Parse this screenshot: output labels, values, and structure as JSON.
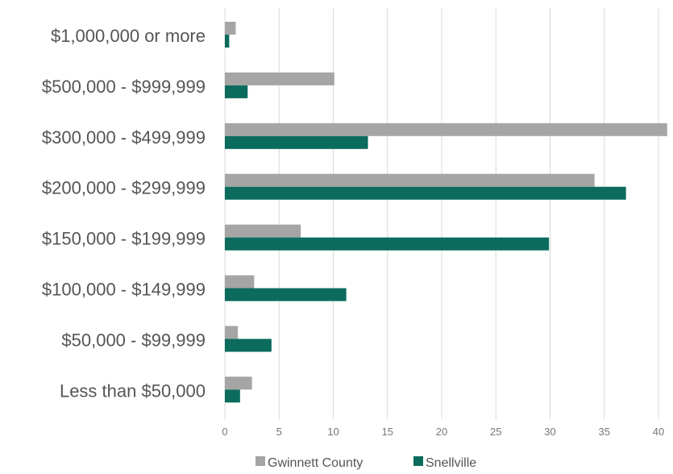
{
  "chart_data": {
    "type": "bar",
    "orientation": "horizontal",
    "title": "",
    "xlabel": "",
    "ylabel": "",
    "categories": [
      "$1,000,000 or more",
      "$500,000 - $999,999",
      "$300,000 - $499,999",
      "$200,000 - $299,999",
      "$150,000 - $199,999",
      "$100,000 - $149,999",
      "$50,000 - $99,999",
      "Less than $50,000"
    ],
    "series": [
      {
        "name": "Gwinnett County",
        "color": "#a5a5a5",
        "values": [
          1.0,
          10.1,
          40.8,
          34.1,
          7.0,
          2.7,
          1.2,
          2.5
        ]
      },
      {
        "name": "Snellville",
        "color": "#0b6b5c",
        "values": [
          0.4,
          2.1,
          13.2,
          37.0,
          29.9,
          11.2,
          4.3,
          1.4
        ]
      }
    ],
    "xlim": [
      0,
      40
    ],
    "xticks": [
      "0",
      "5",
      "10",
      "15",
      "20",
      "25",
      "30",
      "35",
      "40"
    ],
    "grid": true,
    "legend_position": "bottom"
  }
}
